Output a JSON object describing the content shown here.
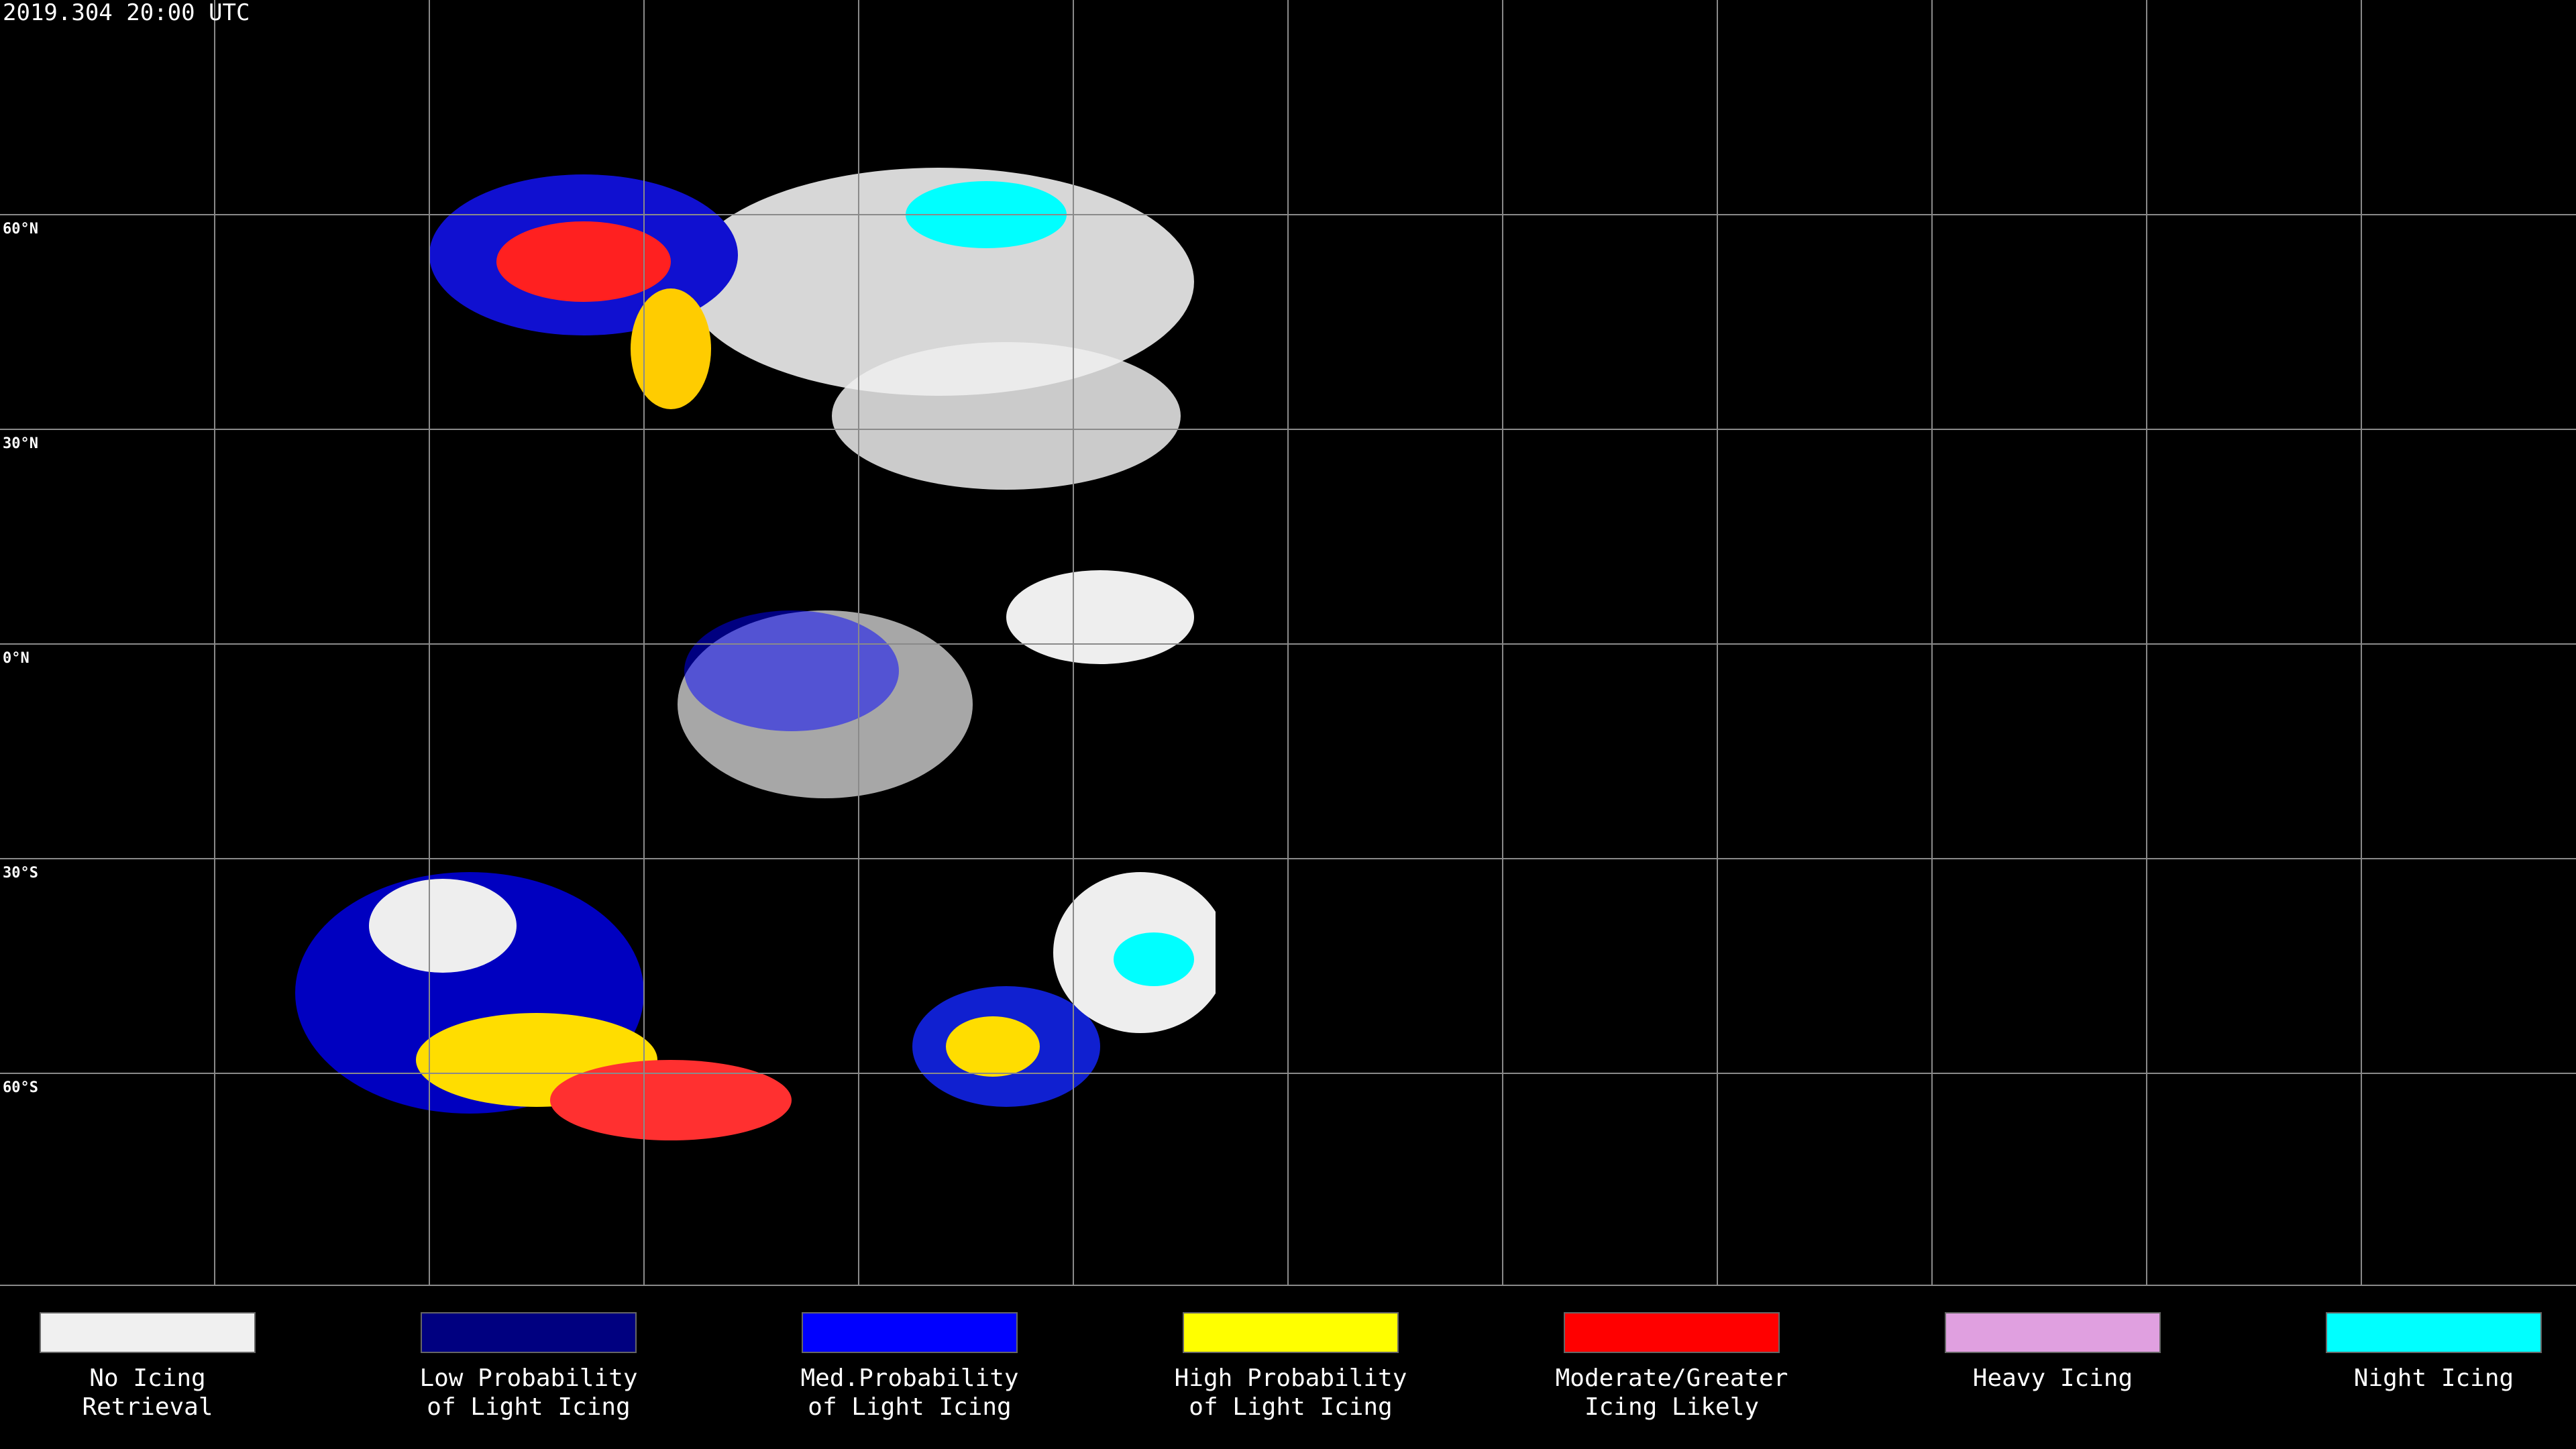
{
  "header": {
    "timestamp": "2019.304 20:00 UTC"
  },
  "map": {
    "latitude_labels": [
      "60°N",
      "30°N",
      "0°N",
      "30°S",
      "60°S"
    ]
  },
  "legend": {
    "items": [
      {
        "lines": [
          "No Icing",
          "Retrieval"
        ],
        "color": "#f0f0f0"
      },
      {
        "lines": [
          "Low Probability",
          "of Light Icing"
        ],
        "color": "#000080"
      },
      {
        "lines": [
          "Med.Probability",
          "of Light Icing"
        ],
        "color": "#0000ff"
      },
      {
        "lines": [
          "High Probability",
          "of Light Icing"
        ],
        "color": "#ffff00"
      },
      {
        "lines": [
          "Moderate/Greater",
          "Icing Likely"
        ],
        "color": "#ff0000"
      },
      {
        "lines": [
          "Heavy Icing"
        ],
        "color": "#e0a0e0"
      },
      {
        "lines": [
          "Night Icing"
        ],
        "color": "#00ffff"
      }
    ]
  }
}
